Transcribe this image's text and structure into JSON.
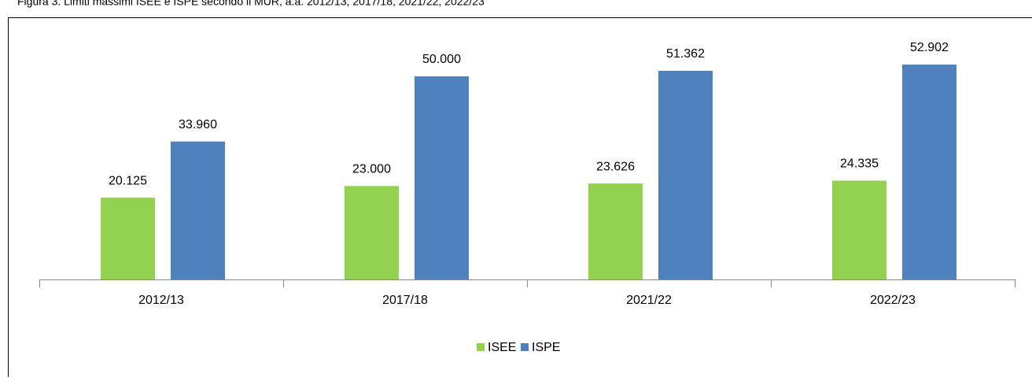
{
  "chart_data": {
    "type": "bar",
    "title": "Figura 3. Limiti massimi ISEE e ISPE secondo il MUR, a.a. 2012/13, 2017/18, 2021/22, 2022/23",
    "categories": [
      "2012/13",
      "2017/18",
      "2021/22",
      "2022/23"
    ],
    "series": [
      {
        "name": "ISEE",
        "color": "#92d050",
        "values": [
          20125,
          23000,
          23626,
          24335
        ],
        "value_labels": [
          "20.125",
          "23.000",
          "23.626",
          "24.335"
        ]
      },
      {
        "name": "ISPE",
        "color": "#4f81bd",
        "values": [
          33960,
          50000,
          51362,
          52902
        ],
        "value_labels": [
          "33.960",
          "50.000",
          "51.362",
          "52.902"
        ]
      }
    ],
    "legend": "bottom"
  }
}
